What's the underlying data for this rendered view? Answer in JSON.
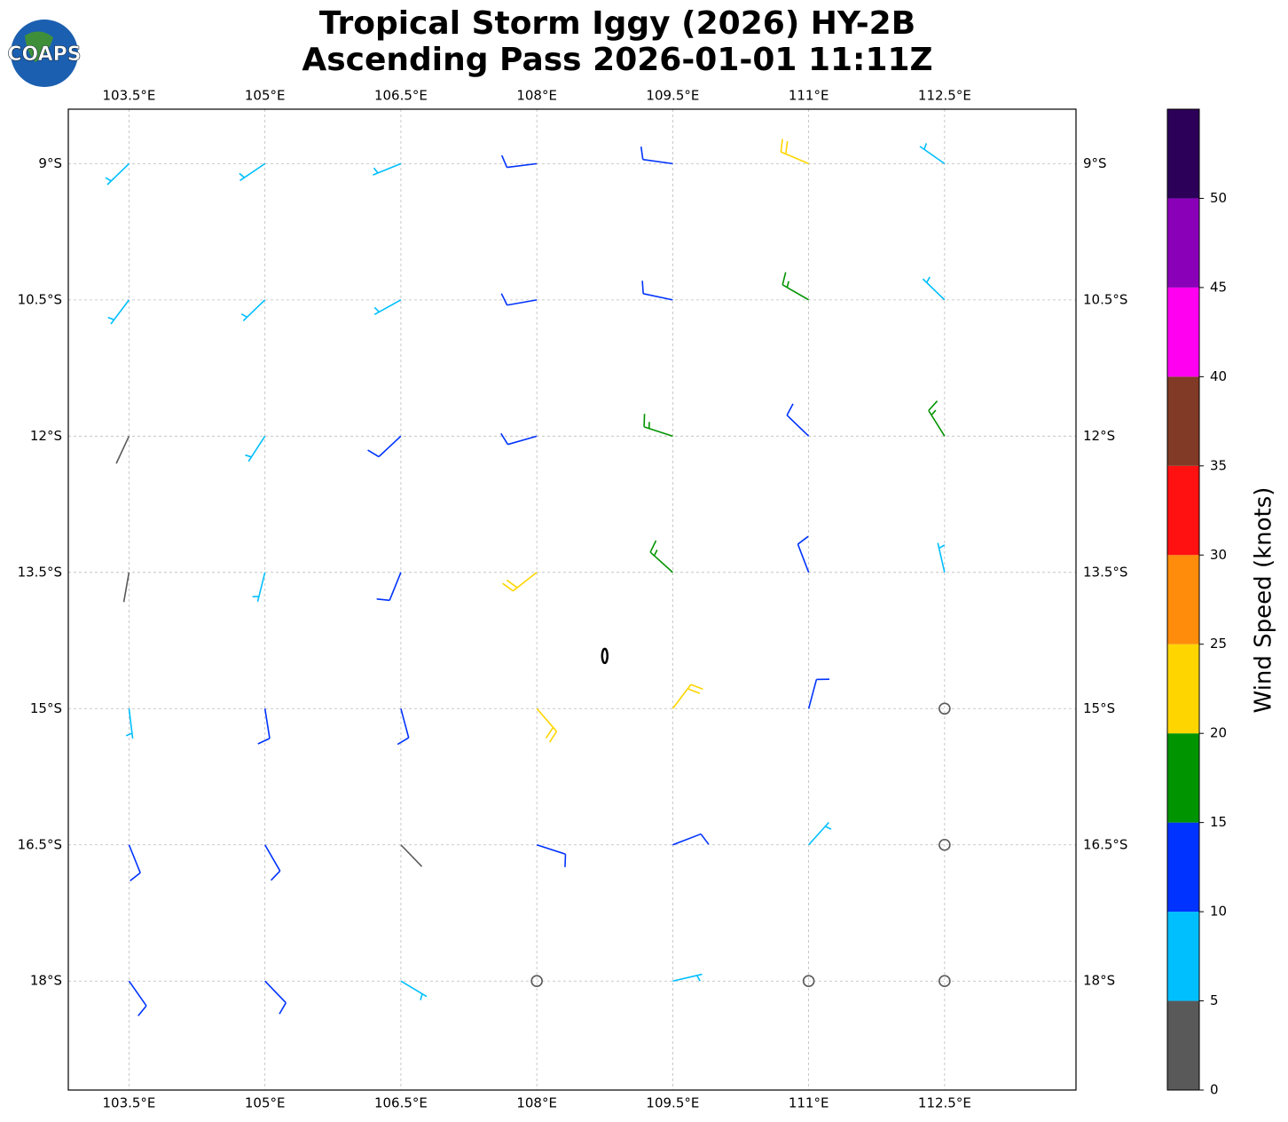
{
  "chart_data": {
    "type": "wind_barb",
    "title": "Tropical Storm Iggy (2026) HY-2B",
    "subtitle": "Ascending Pass 2026-01-01 11:11Z",
    "logo": "COAPS",
    "xlim": [
      102.83,
      113.95
    ],
    "ylim": [
      -19.2,
      -8.4
    ],
    "xticks": [
      {
        "value": 103.5,
        "label": "103.5°E"
      },
      {
        "value": 105,
        "label": "105°E"
      },
      {
        "value": 106.5,
        "label": "106.5°E"
      },
      {
        "value": 108,
        "label": "108°E"
      },
      {
        "value": 109.5,
        "label": "109.5°E"
      },
      {
        "value": 111,
        "label": "111°E"
      },
      {
        "value": 112.5,
        "label": "112.5°E"
      }
    ],
    "yticks": [
      {
        "value": -9,
        "label": "9°S"
      },
      {
        "value": -10.5,
        "label": "10.5°S"
      },
      {
        "value": -12,
        "label": "12°S"
      },
      {
        "value": -13.5,
        "label": "13.5°S"
      },
      {
        "value": -15,
        "label": "15°S"
      },
      {
        "value": -16.5,
        "label": "16.5°S"
      },
      {
        "value": -18,
        "label": "18°S"
      }
    ],
    "grid": true,
    "center": [
      108.75,
      -14.42
    ],
    "barbs": {
      "lon": [
        103.5,
        105,
        106.5,
        108,
        109.5,
        111,
        112.5,
        103.5,
        105,
        106.5,
        108,
        109.5,
        111,
        112.5,
        103.5,
        105,
        106.5,
        108,
        109.5,
        111,
        112.5,
        103.5,
        105,
        106.5,
        108,
        109.5,
        111,
        112.5,
        103.5,
        105,
        106.5,
        108,
        109.5,
        111,
        112.5,
        103.5,
        105,
        106.5,
        108,
        109.5,
        111,
        112.5,
        103.5,
        105,
        106.5,
        108,
        109.5,
        111,
        112.5
      ],
      "lat": [
        -9,
        -9,
        -9,
        -9,
        -9,
        -9,
        -9,
        -10.5,
        -10.5,
        -10.5,
        -10.5,
        -10.5,
        -10.5,
        -10.5,
        -12,
        -12,
        -12,
        -12,
        -12,
        -12,
        -12,
        -13.5,
        -13.5,
        -13.5,
        -13.5,
        -13.5,
        -13.5,
        -13.5,
        -15,
        -15,
        -15,
        -15,
        -15,
        -15,
        -15,
        -16.5,
        -16.5,
        -16.5,
        -16.5,
        -16.5,
        -16.5,
        -16.5,
        -18,
        -18,
        -18,
        -18,
        -18,
        -18,
        -18
      ],
      "speed": [
        6,
        8,
        9,
        12,
        14,
        20,
        8,
        7,
        8,
        9,
        13,
        14,
        17,
        8,
        4,
        7,
        11,
        14,
        16,
        14,
        18,
        4,
        8,
        13,
        22,
        17,
        14,
        9,
        7,
        10,
        13,
        24,
        20,
        13,
        2,
        12,
        10,
        4,
        14,
        12,
        5,
        2,
        13,
        12,
        8,
        2,
        8,
        2,
        2
      ],
      "direction": [
        226,
        236,
        248,
        263,
        278,
        293,
        305,
        217,
        226,
        241,
        260,
        282,
        300,
        314,
        205,
        213,
        227,
        254,
        288,
        314,
        328,
        190,
        194,
        202,
        232,
        312,
        339,
        347,
        173,
        171,
        165,
        139,
        37,
        15,
        9,
        158,
        150,
        136,
        108,
        69,
        42,
        29,
        145,
        136,
        121,
        101,
        77,
        58,
        47
      ]
    },
    "colorbar": {
      "label": "Wind Speed (knots)",
      "levels": [
        0,
        5,
        10,
        15,
        20,
        25,
        30,
        35,
        40,
        45,
        50,
        55
      ],
      "colors": [
        "#595959",
        "#00bfff",
        "#0033ff",
        "#009400",
        "#ffd500",
        "#ff8c0a",
        "#ff1111",
        "#813a25",
        "#ff00f0",
        "#8a00b8",
        "#2c0058"
      ],
      "ticks": [
        0,
        5,
        10,
        15,
        20,
        25,
        30,
        35,
        40,
        45,
        50
      ]
    }
  }
}
